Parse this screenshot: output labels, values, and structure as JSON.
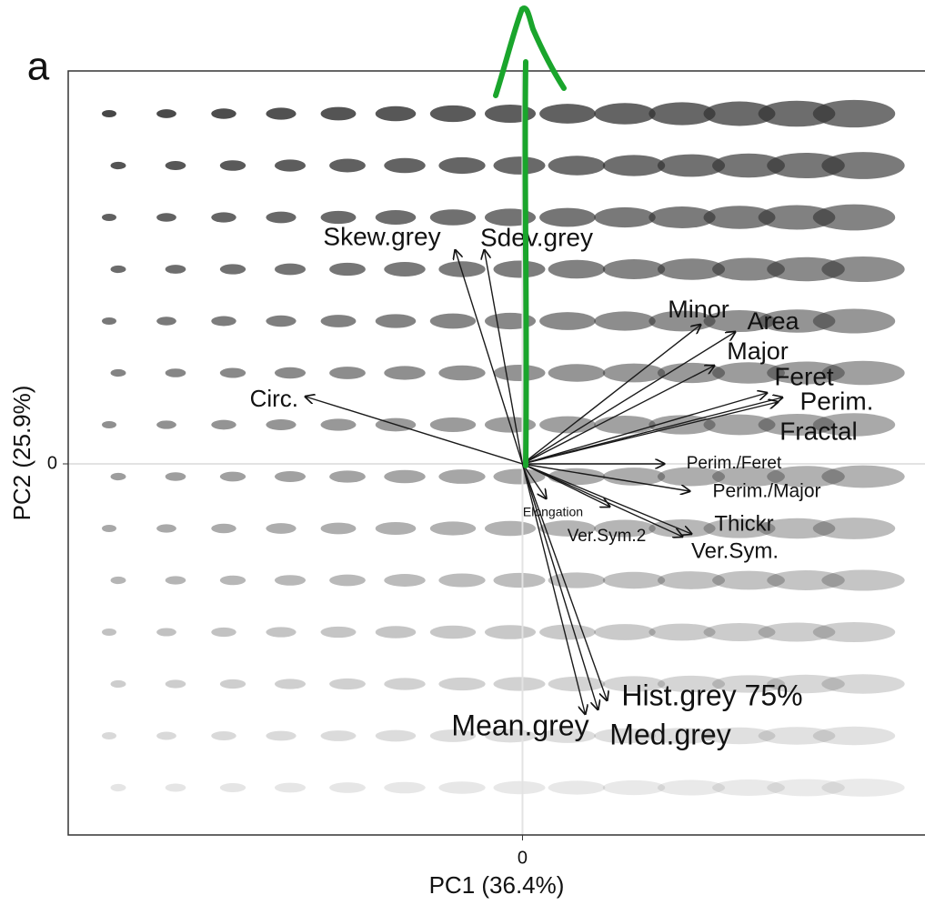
{
  "panel_label": "a",
  "chart_data": {
    "type": "biplot",
    "x_label": "PC1 (36.4%)",
    "y_label": "PC2 (25.9%)",
    "xlim": [
      -5,
      4.43
    ],
    "ylim": [
      -4.08,
      4.32
    ],
    "xticks": [
      0
    ],
    "yticks": [
      0
    ],
    "grid": true,
    "color": "#1a1a1a",
    "loadings": [
      {
        "name": "Skew.grey",
        "x": -0.74,
        "y": 2.35
      },
      {
        "name": "Sdev.grey",
        "x": -0.42,
        "y": 2.35
      },
      {
        "name": "Circ.",
        "x": -2.39,
        "y": 0.74
      },
      {
        "name": "Minor",
        "x": 1.96,
        "y": 1.53
      },
      {
        "name": "Area",
        "x": 2.34,
        "y": 1.45
      },
      {
        "name": "Major",
        "x": 2.11,
        "y": 1.08
      },
      {
        "name": "Feret",
        "x": 2.69,
        "y": 0.78
      },
      {
        "name": "Perim.",
        "x": 2.86,
        "y": 0.73
      },
      {
        "name": "Fractal",
        "x": 2.81,
        "y": 0.68
      },
      {
        "name": "Perim./Feret",
        "x": 1.56,
        "y": 0
      },
      {
        "name": "Perim./Major",
        "x": 1.84,
        "y": -0.3
      },
      {
        "name": "Elongation",
        "x": 0.26,
        "y": -0.38
      },
      {
        "name": "Ver.Sym.2",
        "x": 0.96,
        "y": -0.47
      },
      {
        "name": "Thickr",
        "x": 1.86,
        "y": -0.77
      },
      {
        "name": "Ver.Sym.",
        "x": 1.76,
        "y": -0.8
      },
      {
        "name": "Mean.grey",
        "x": 0.69,
        "y": -2.75
      },
      {
        "name": "Med.grey",
        "x": 0.83,
        "y": -2.7
      },
      {
        "name": "Hist.grey 75%",
        "x": 0.93,
        "y": -2.6
      }
    ]
  }
}
